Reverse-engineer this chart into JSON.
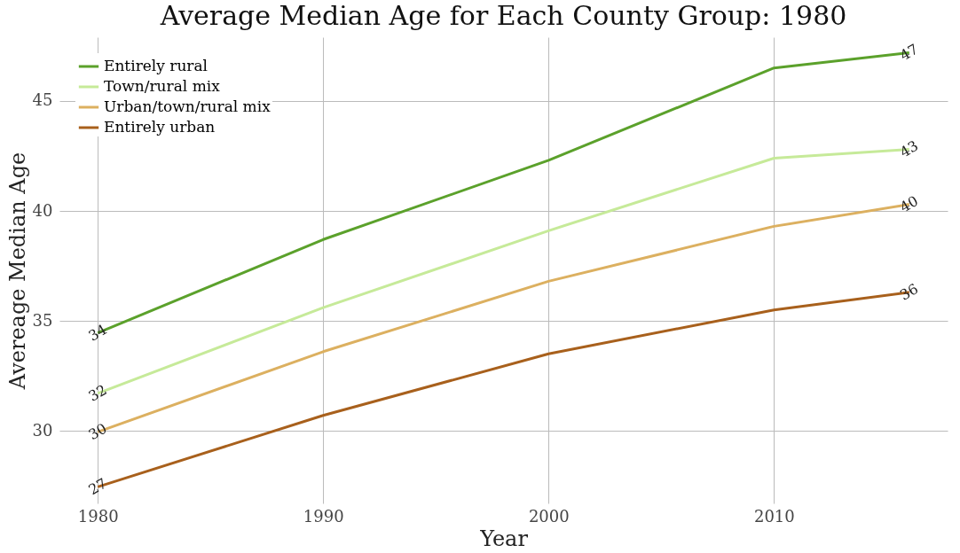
{
  "chart_data": {
    "type": "line",
    "title": "Average Median Age for Each County Group: 1980",
    "xlabel": "Year",
    "ylabel": "Avereage Median Age",
    "x": [
      1980,
      1990,
      2000,
      2010,
      2016
    ],
    "series": [
      {
        "name": "Entirely rural",
        "color": "#5ba12b",
        "values": [
          34.45,
          38.7,
          42.3,
          46.5,
          47.2
        ],
        "value_labels": [
          "34",
          null,
          null,
          null,
          "47"
        ]
      },
      {
        "name": "Town/rural mix",
        "color": "#c6ea99",
        "values": [
          31.7,
          35.6,
          39.1,
          42.4,
          42.8
        ],
        "value_labels": [
          "32",
          null,
          null,
          null,
          "43"
        ]
      },
      {
        "name": "Urban/town/rural mix",
        "color": "#dcb060",
        "values": [
          29.95,
          33.6,
          36.8,
          39.3,
          40.3
        ],
        "value_labels": [
          "30",
          null,
          null,
          null,
          "40"
        ]
      },
      {
        "name": "Entirely urban",
        "color": "#a8601c",
        "values": [
          27.45,
          30.7,
          33.5,
          35.5,
          36.3
        ],
        "value_labels": [
          "27",
          null,
          null,
          null,
          "36"
        ]
      }
    ],
    "xlim": [
      1978.3,
      2017.7
    ],
    "ylim": [
      26.7,
      47.9
    ],
    "xticks": [
      1980,
      1990,
      2000,
      2010
    ],
    "yticks": [
      30,
      35,
      40,
      45
    ],
    "grid": true,
    "legend": "top left",
    "marker": "none",
    "line_style": "solid"
  }
}
